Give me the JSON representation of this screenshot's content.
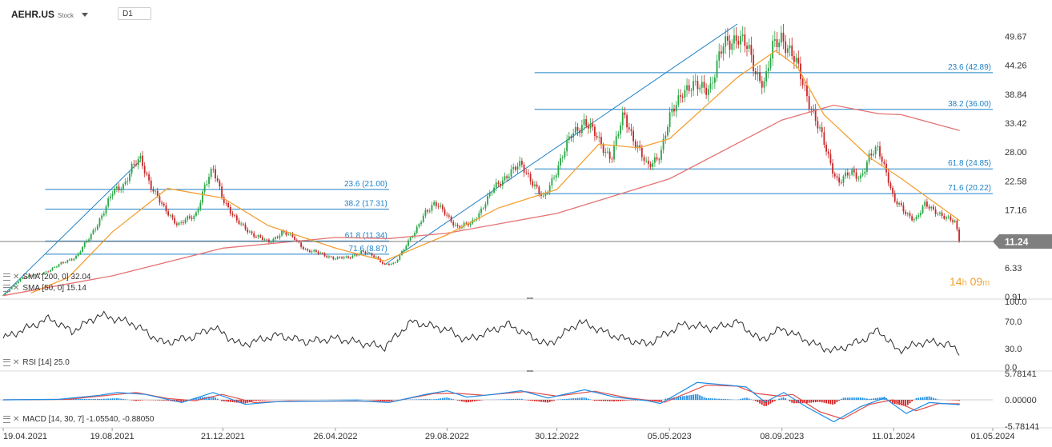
{
  "header": {
    "symbol": "AEHR.US",
    "instrument_type": "Stock",
    "timeframe": "D1"
  },
  "last_price": {
    "label": "11.24",
    "value": 11.24,
    "color": "#7f7f7f"
  },
  "countdown": {
    "hours": "14",
    "hours_unit": "h",
    "minutes": "09",
    "minutes_unit": "m"
  },
  "legends": {
    "sma200": "SMA [200, 0] 32.04",
    "sma50": "SMA [50, 0] 15.14",
    "rsi": "RSI [14] 25.0",
    "macd": "MACD [14, 30, 7] -1.05540, -0.88050"
  },
  "colors": {
    "candle_up": "#27a644",
    "candle_down": "#c62828",
    "sma50": "#f5a033",
    "sma200": "#e57373",
    "fib": "#1f82c8",
    "rsi": "#2d2d2d",
    "macd_main": "#1e8ee8",
    "macd_signal": "#e14b4b",
    "hist_pos": "#1e8ee8",
    "hist_neg": "#d42020"
  },
  "icons": {
    "legend_settings": "settings-lines-icon",
    "legend_close": "close-x-icon",
    "dropdown": "chevron-down-icon"
  },
  "chart_data": [
    {
      "type": "candlestick",
      "x_axis": {
        "tick_labels": [
          "19.04.2021",
          "19.08.2021",
          "21.12.2021",
          "26.04.2022",
          "29.08.2022",
          "30.12.2022",
          "05.05.2023",
          "08.09.2023",
          "11.01.2024",
          "01.05.2024"
        ],
        "range": [
          "2021-04-19",
          "2024-05-01"
        ]
      },
      "y_axis": {
        "tick_labels": [
          "49.67",
          "44.26",
          "38.84",
          "33.42",
          "28.00",
          "22.58",
          "17.16",
          "6.33",
          "0.91"
        ],
        "range": [
          0.91,
          53.5
        ],
        "position": "right"
      },
      "price_path": [
        [
          "2021-04-19",
          1.2
        ],
        [
          "2021-05-10",
          4.5
        ],
        [
          "2021-06-01",
          5.2
        ],
        [
          "2021-06-20",
          6.8
        ],
        [
          "2021-07-10",
          8.5
        ],
        [
          "2021-07-25",
          12
        ],
        [
          "2021-08-10",
          17
        ],
        [
          "2021-08-20",
          20.5
        ],
        [
          "2021-09-01",
          22
        ],
        [
          "2021-09-10",
          25
        ],
        [
          "2021-09-20",
          26.5
        ],
        [
          "2021-10-01",
          22
        ],
        [
          "2021-10-15",
          17.5
        ],
        [
          "2021-11-01",
          14.5
        ],
        [
          "2021-11-20",
          16
        ],
        [
          "2021-12-01",
          22
        ],
        [
          "2021-12-10",
          24.5
        ],
        [
          "2021-12-21",
          19.5
        ],
        [
          "2022-01-05",
          15
        ],
        [
          "2022-01-25",
          12.5
        ],
        [
          "2022-02-10",
          11
        ],
        [
          "2022-02-25",
          13
        ],
        [
          "2022-03-10",
          12
        ],
        [
          "2022-03-25",
          9.5
        ],
        [
          "2022-04-10",
          9
        ],
        [
          "2022-04-26",
          8
        ],
        [
          "2022-05-10",
          8.3
        ],
        [
          "2022-05-25",
          9.2
        ],
        [
          "2022-06-10",
          8.5
        ],
        [
          "2022-06-20",
          6.9
        ],
        [
          "2022-07-01",
          7
        ],
        [
          "2022-07-15",
          11
        ],
        [
          "2022-07-25",
          13
        ],
        [
          "2022-08-05",
          17
        ],
        [
          "2022-08-15",
          18.5
        ],
        [
          "2022-08-29",
          16
        ],
        [
          "2022-09-10",
          14
        ],
        [
          "2022-09-25",
          14.5
        ],
        [
          "2022-10-05",
          17
        ],
        [
          "2022-10-20",
          21
        ],
        [
          "2022-11-05",
          24
        ],
        [
          "2022-11-20",
          25.5
        ],
        [
          "2022-12-01",
          23
        ],
        [
          "2022-12-15",
          19
        ],
        [
          "2022-12-30",
          25
        ],
        [
          "2023-01-15",
          31
        ],
        [
          "2023-01-30",
          34
        ],
        [
          "2023-02-15",
          30
        ],
        [
          "2023-03-01",
          27
        ],
        [
          "2023-03-15",
          35
        ],
        [
          "2023-03-25",
          31
        ],
        [
          "2023-04-10",
          25
        ],
        [
          "2023-04-25",
          28
        ],
        [
          "2023-05-05",
          34
        ],
        [
          "2023-05-20",
          40
        ],
        [
          "2023-06-05",
          40
        ],
        [
          "2023-06-20",
          40.5
        ],
        [
          "2023-07-05",
          48
        ],
        [
          "2023-07-20",
          50
        ],
        [
          "2023-08-01",
          47
        ],
        [
          "2023-08-10",
          43
        ],
        [
          "2023-08-20",
          41
        ],
        [
          "2023-08-28",
          47
        ],
        [
          "2023-09-08",
          50
        ],
        [
          "2023-09-20",
          46
        ],
        [
          "2023-10-01",
          41
        ],
        [
          "2023-10-10",
          37
        ],
        [
          "2023-10-20",
          32
        ],
        [
          "2023-11-01",
          26
        ],
        [
          "2023-11-10",
          22.5
        ],
        [
          "2023-11-25",
          24
        ],
        [
          "2023-12-05",
          23.5
        ],
        [
          "2023-12-15",
          27
        ],
        [
          "2023-12-25",
          28.5
        ],
        [
          "2024-01-04",
          24
        ],
        [
          "2024-01-11",
          19
        ],
        [
          "2024-01-25",
          16.5
        ],
        [
          "2024-02-05",
          15.5
        ],
        [
          "2024-02-15",
          18
        ],
        [
          "2024-02-28",
          17
        ],
        [
          "2024-03-10",
          15.5
        ],
        [
          "2024-03-20",
          14.8
        ],
        [
          "2024-03-25",
          11.24
        ]
      ],
      "sma200_path": [
        [
          "2021-04-19",
          1.1
        ],
        [
          "2021-08-19",
          4.8
        ],
        [
          "2021-12-21",
          10
        ],
        [
          "2022-04-26",
          12
        ],
        [
          "2022-06-25",
          11.8
        ],
        [
          "2022-08-29",
          12.8
        ],
        [
          "2022-12-30",
          16.5
        ],
        [
          "2023-05-05",
          23
        ],
        [
          "2023-09-08",
          34
        ],
        [
          "2023-11-05",
          36.8
        ],
        [
          "2023-12-25",
          35.2
        ],
        [
          "2024-01-20",
          35
        ],
        [
          "2024-03-25",
          32.04
        ]
      ],
      "sma50_path": [
        [
          "2021-05-20",
          1.6
        ],
        [
          "2021-07-01",
          4.5
        ],
        [
          "2021-08-19",
          13
        ],
        [
          "2021-10-20",
          21.2
        ],
        [
          "2021-12-21",
          19.4
        ],
        [
          "2022-02-10",
          14.2
        ],
        [
          "2022-04-26",
          10
        ],
        [
          "2022-06-20",
          7.6
        ],
        [
          "2022-08-29",
          12.5
        ],
        [
          "2022-10-25",
          17.5
        ],
        [
          "2022-12-30",
          21
        ],
        [
          "2023-02-15",
          29.5
        ],
        [
          "2023-04-01",
          28.8
        ],
        [
          "2023-05-05",
          30.5
        ],
        [
          "2023-07-20",
          42
        ],
        [
          "2023-09-01",
          47
        ],
        [
          "2023-09-25",
          44
        ],
        [
          "2023-10-25",
          35
        ],
        [
          "2023-12-15",
          27
        ],
        [
          "2024-01-20",
          23
        ],
        [
          "2024-03-25",
          15.14
        ]
      ],
      "fibonacci": [
        {
          "from": "2021-04-19",
          "to": "2021-09-20",
          "line_end": "2022-06-25",
          "levels": [
            {
              "label": "23.6 (21.00)",
              "value": 21.0
            },
            {
              "label": "38.2 (17.31)",
              "value": 17.31
            },
            {
              "label": "61.8 (11.34)",
              "value": 11.34
            },
            {
              "label": "71.6 (8.87)",
              "value": 8.87
            }
          ]
        },
        {
          "from": "2022-06-20",
          "to": "2023-07-20",
          "line_end": "2024-05-01",
          "levels": [
            {
              "label": "23.6 (42.89)",
              "value": 42.89
            },
            {
              "label": "38.2 (36.00)",
              "value": 36.0
            },
            {
              "label": "61.8 (24.85)",
              "value": 24.85
            },
            {
              "label": "71.6 (20.22)",
              "value": 20.22
            }
          ]
        }
      ]
    },
    {
      "type": "line",
      "name": "RSI [14]",
      "y_axis": {
        "tick_labels": [
          "100.0",
          "70.0",
          "30.0",
          "0.0"
        ],
        "range": [
          0,
          100
        ]
      },
      "path": [
        [
          "2021-04-19",
          45
        ],
        [
          "2021-05-15",
          60
        ],
        [
          "2021-06-10",
          75
        ],
        [
          "2021-07-05",
          55
        ],
        [
          "2021-08-05",
          80
        ],
        [
          "2021-09-10",
          68
        ],
        [
          "2021-10-15",
          38
        ],
        [
          "2021-11-20",
          48
        ],
        [
          "2021-12-10",
          62
        ],
        [
          "2022-01-10",
          35
        ],
        [
          "2022-02-20",
          50
        ],
        [
          "2022-03-25",
          40
        ],
        [
          "2022-04-26",
          45
        ],
        [
          "2022-06-20",
          32
        ],
        [
          "2022-07-20",
          70
        ],
        [
          "2022-08-29",
          58
        ],
        [
          "2022-09-20",
          42
        ],
        [
          "2022-11-05",
          66
        ],
        [
          "2022-12-20",
          35
        ],
        [
          "2023-01-25",
          70
        ],
        [
          "2023-03-05",
          48
        ],
        [
          "2023-04-10",
          36
        ],
        [
          "2023-05-20",
          66
        ],
        [
          "2023-06-25",
          60
        ],
        [
          "2023-07-20",
          70
        ],
        [
          "2023-08-15",
          42
        ],
        [
          "2023-09-08",
          60
        ],
        [
          "2023-10-15",
          36
        ],
        [
          "2023-11-05",
          26
        ],
        [
          "2023-12-10",
          44
        ],
        [
          "2023-12-25",
          58
        ],
        [
          "2024-01-15",
          27
        ],
        [
          "2024-02-15",
          40
        ],
        [
          "2024-03-10",
          37
        ],
        [
          "2024-03-25",
          25
        ]
      ]
    },
    {
      "type": "line",
      "name": "MACD [14, 30, 7]",
      "y_axis": {
        "tick_labels": [
          "5.78141",
          "0.00000",
          "-5.78141"
        ],
        "range": [
          -5.78141,
          5.78141
        ]
      },
      "macd_path": [
        [
          "2021-04-19",
          0
        ],
        [
          "2021-06-20",
          0.1
        ],
        [
          "2021-08-05",
          1.0
        ],
        [
          "2021-08-25",
          1.6
        ],
        [
          "2021-09-25",
          1.2
        ],
        [
          "2021-11-05",
          -0.6
        ],
        [
          "2021-12-10",
          1.6
        ],
        [
          "2022-01-15",
          -1.0
        ],
        [
          "2022-02-20",
          -0.4
        ],
        [
          "2022-04-05",
          -0.3
        ],
        [
          "2022-05-20",
          -0.2
        ],
        [
          "2022-06-25",
          -0.6
        ],
        [
          "2022-08-05",
          1.2
        ],
        [
          "2022-08-29",
          2.0
        ],
        [
          "2022-09-20",
          0.6
        ],
        [
          "2022-10-20",
          1.2
        ],
        [
          "2022-11-20",
          2.0
        ],
        [
          "2022-12-20",
          0.4
        ],
        [
          "2023-01-30",
          2.2
        ],
        [
          "2023-03-05",
          0.6
        ],
        [
          "2023-04-10",
          -0.2
        ],
        [
          "2023-04-25",
          -0.8
        ],
        [
          "2023-06-05",
          3.8
        ],
        [
          "2023-07-10",
          3.2
        ],
        [
          "2023-07-30",
          2.8
        ],
        [
          "2023-08-20",
          -0.5
        ],
        [
          "2023-09-10",
          1.6
        ],
        [
          "2023-10-05",
          -1.5
        ],
        [
          "2023-11-05",
          -4.8
        ],
        [
          "2023-12-05",
          -1.5
        ],
        [
          "2024-01-01",
          0.4
        ],
        [
          "2024-01-25",
          -3.0
        ],
        [
          "2024-02-20",
          -0.6
        ],
        [
          "2024-03-25",
          -1.06
        ]
      ],
      "signal_path": [
        [
          "2021-04-19",
          0
        ],
        [
          "2021-07-01",
          0.1
        ],
        [
          "2021-08-20",
          1.1
        ],
        [
          "2021-09-15",
          1.6
        ],
        [
          "2021-10-20",
          0.3
        ],
        [
          "2021-11-20",
          -0.2
        ],
        [
          "2021-12-20",
          1.2
        ],
        [
          "2022-01-25",
          -0.6
        ],
        [
          "2022-03-05",
          -0.3
        ],
        [
          "2022-05-01",
          -0.3
        ],
        [
          "2022-07-01",
          -0.3
        ],
        [
          "2022-08-15",
          1.4
        ],
        [
          "2022-09-10",
          1.4
        ],
        [
          "2022-10-10",
          1.0
        ],
        [
          "2022-11-25",
          1.8
        ],
        [
          "2022-12-30",
          0.8
        ],
        [
          "2023-02-10",
          1.9
        ],
        [
          "2023-03-20",
          0.4
        ],
        [
          "2023-04-30",
          -0.5
        ],
        [
          "2023-06-15",
          3.2
        ],
        [
          "2023-07-20",
          3.0
        ],
        [
          "2023-08-10",
          1.4
        ],
        [
          "2023-09-05",
          0.8
        ],
        [
          "2023-09-20",
          1.2
        ],
        [
          "2023-10-20",
          -2.6
        ],
        [
          "2023-11-15",
          -4.2
        ],
        [
          "2023-12-15",
          -1.0
        ],
        [
          "2024-01-10",
          0.0
        ],
        [
          "2024-02-05",
          -2.4
        ],
        [
          "2024-03-01",
          -0.8
        ],
        [
          "2024-03-25",
          -0.88
        ]
      ]
    }
  ]
}
